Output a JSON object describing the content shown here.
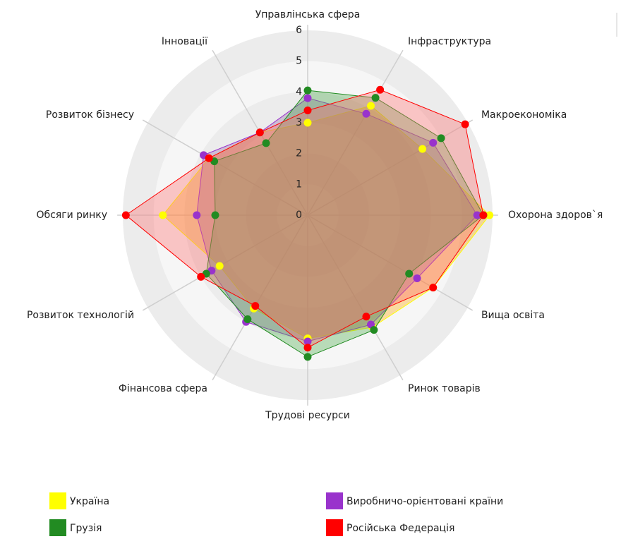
{
  "chart_data": {
    "type": "radar",
    "categories": [
      "Управлінська сфера",
      "Інфраструктура",
      "Макроекономіка",
      "Охорона здоров`я",
      "Вища освіта",
      "Ринок товарів",
      "Трудові ресурси",
      "Фінансова сфера",
      "Розвиток технологій",
      "Обсяги ринку",
      "Розвиток бізнесу",
      "Інновації"
    ],
    "ylim": [
      0,
      6
    ],
    "yticks": [
      0,
      1,
      2,
      3,
      4,
      5,
      6
    ],
    "series": [
      {
        "name": "Україна",
        "color": "#ffff00",
        "fill": "#ffa500",
        "values": [
          3.0,
          4.1,
          4.3,
          5.9,
          4.7,
          4.2,
          4.0,
          3.5,
          3.3,
          4.7,
          3.7,
          3.1
        ]
      },
      {
        "name": "Виробничо-орієнтовані країни",
        "color": "#9933cc",
        "fill": "#9966aa",
        "values": [
          3.8,
          3.8,
          4.7,
          5.5,
          4.1,
          4.1,
          4.1,
          4.0,
          3.6,
          3.6,
          3.9,
          3.1
        ]
      },
      {
        "name": "Грузія",
        "color": "#228b22",
        "fill": "#44aa44",
        "values": [
          4.05,
          4.4,
          5.0,
          5.7,
          3.8,
          4.3,
          4.6,
          3.9,
          3.8,
          3.0,
          3.5,
          2.7
        ]
      },
      {
        "name": "Російська Федерація",
        "color": "#ff0000",
        "fill": "#ff6666",
        "values": [
          3.4,
          4.7,
          5.9,
          5.7,
          4.7,
          3.8,
          4.3,
          3.4,
          4.0,
          5.9,
          3.7,
          3.1
        ]
      }
    ]
  }
}
